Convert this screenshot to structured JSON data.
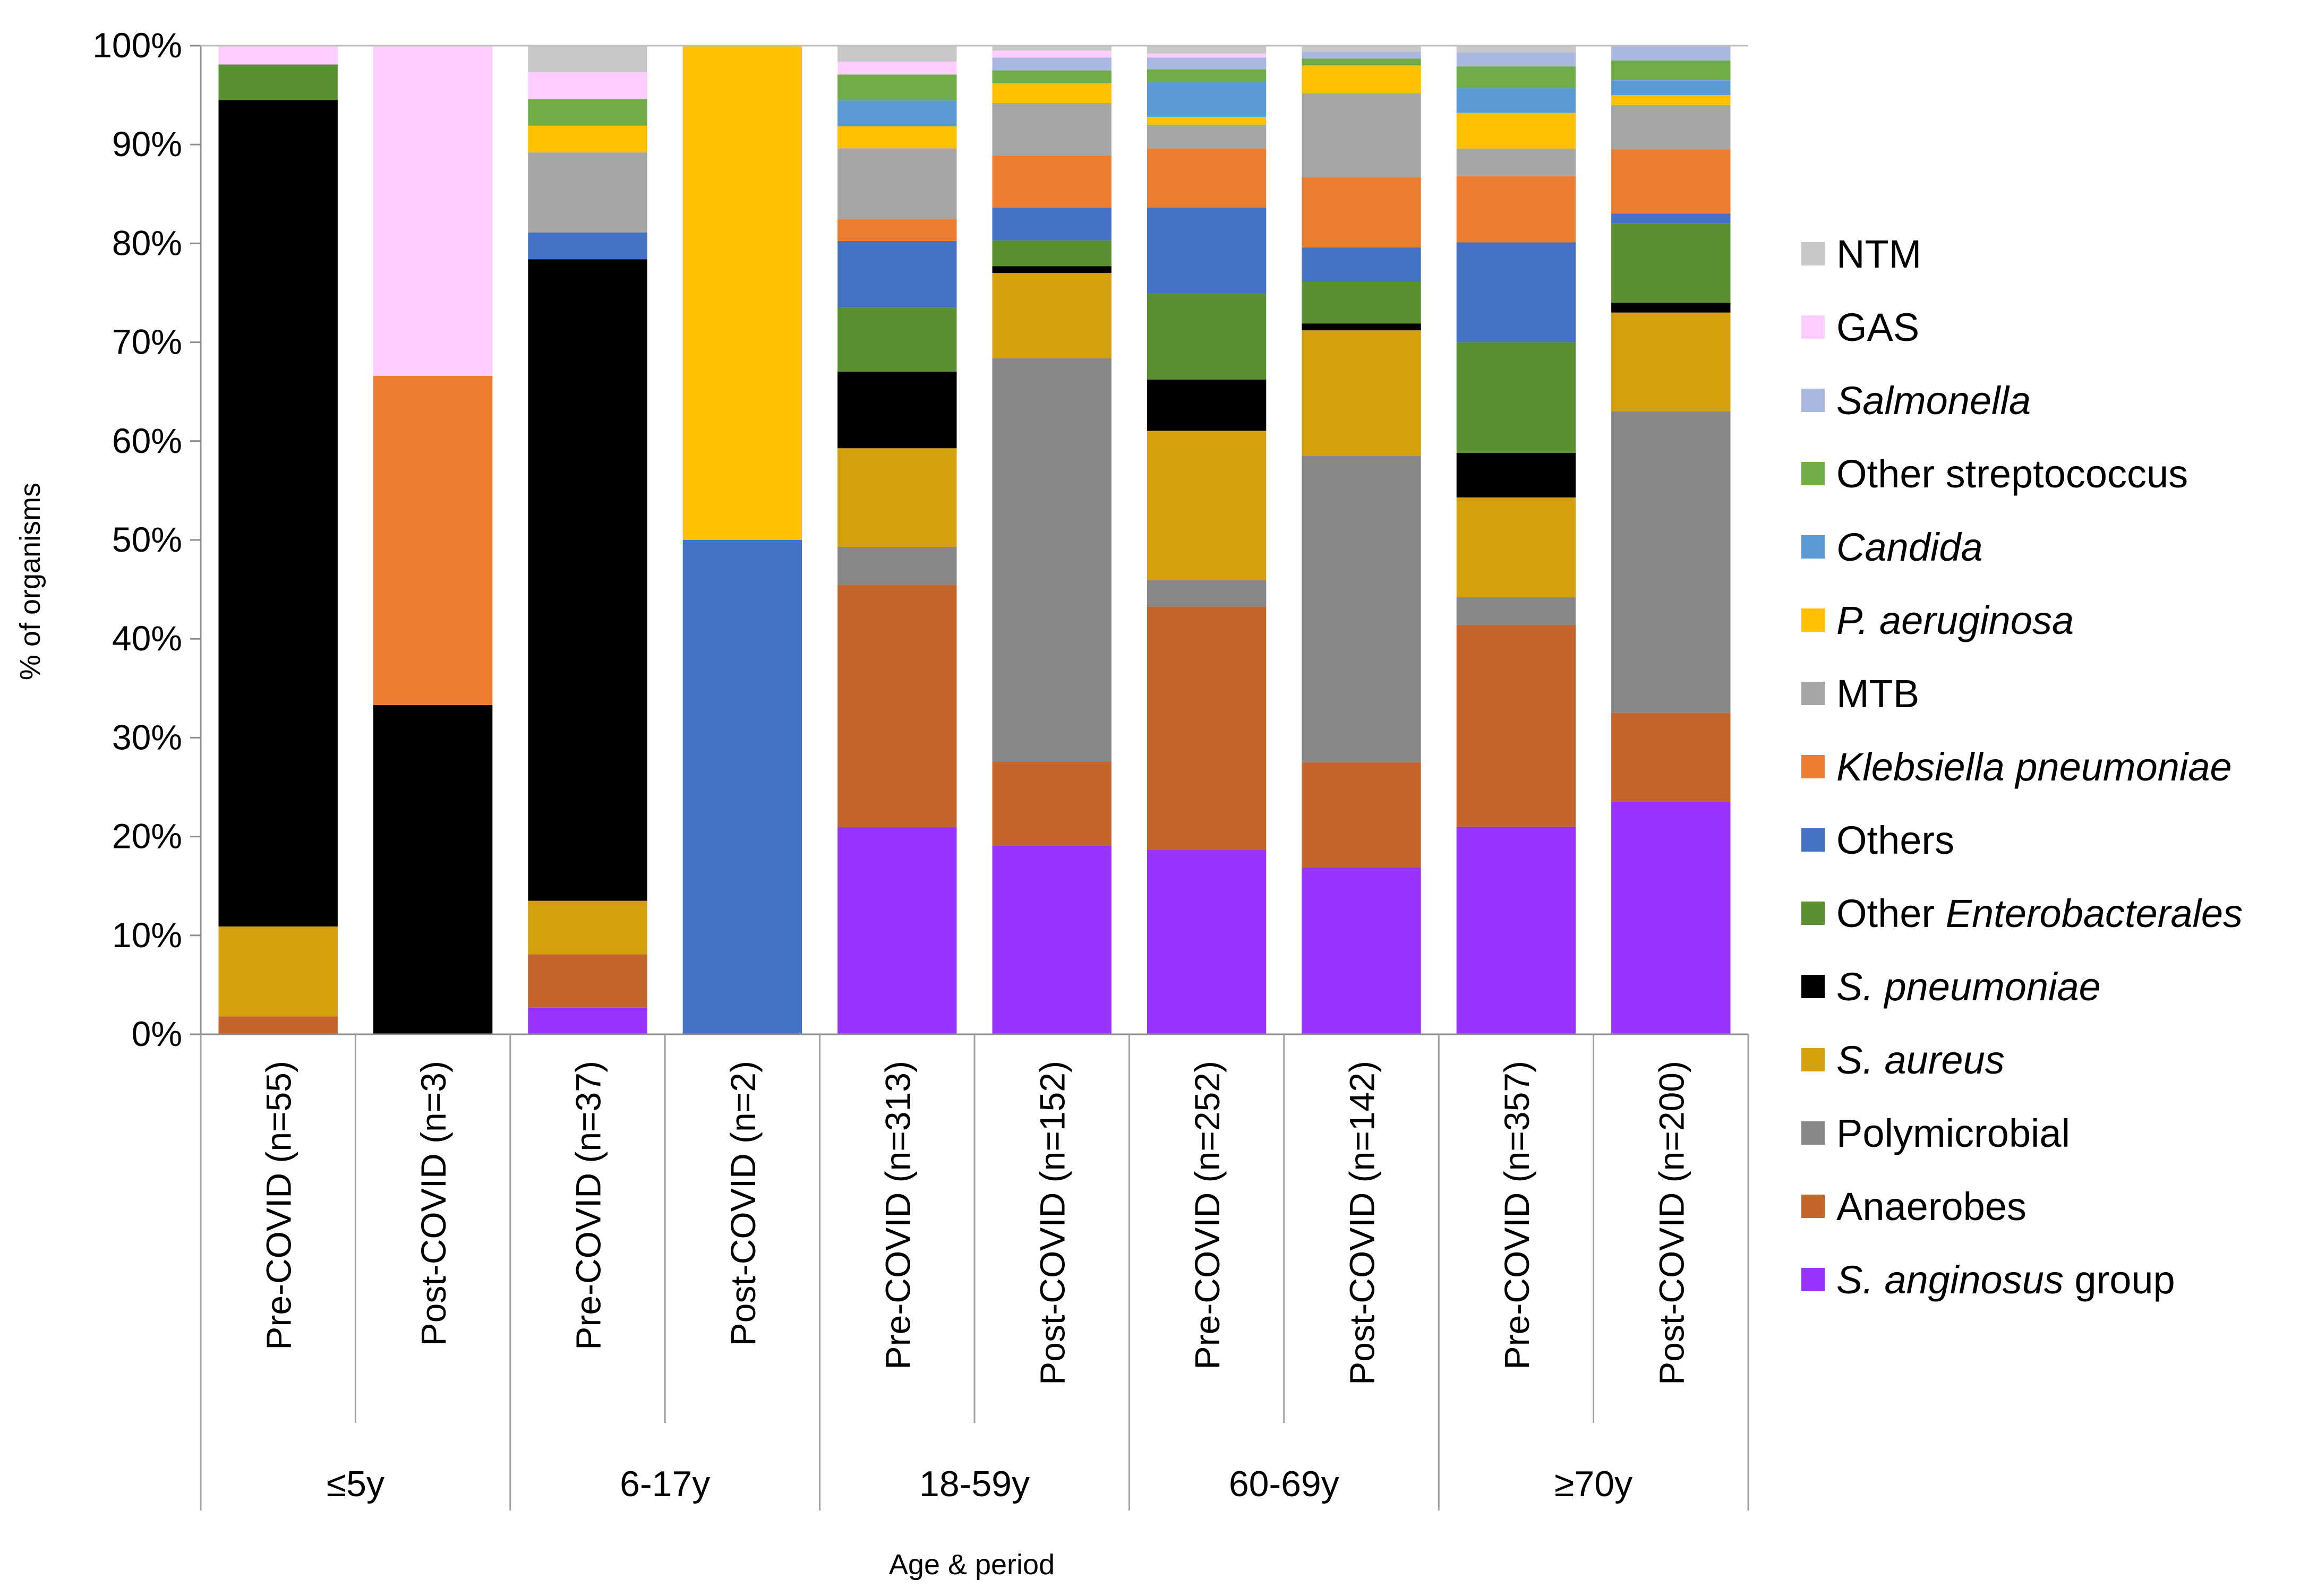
{
  "chart_data": {
    "type": "bar",
    "stacked": true,
    "normalized": true,
    "title": "",
    "xlabel": "Age & period",
    "ylabel": "% of organisms",
    "ylim": [
      0,
      100
    ],
    "yticks": [
      "0%",
      "10%",
      "20%",
      "30%",
      "40%",
      "50%",
      "60%",
      "70%",
      "80%",
      "90%",
      "100%"
    ],
    "grid": false,
    "legend_position": "right",
    "categories": [
      "Pre-COVID (n=55)",
      "Post-COVID (n=3)",
      "Pre-COVID (n=37)",
      "Post-COVID (n=2)",
      "Pre-COVID (n=313)",
      "Post-COVID (n=152)",
      "Pre-COVID (n=252)",
      "Post-COVID (n=142)",
      "Pre-COVID (n=357)",
      "Post-COVID (n=200)"
    ],
    "groups": [
      {
        "label": "≤5y",
        "span": 2
      },
      {
        "label": "6-17y",
        "span": 2
      },
      {
        "label": "18-59y",
        "span": 2
      },
      {
        "label": "60-69y",
        "span": 2
      },
      {
        "label": "≥70y",
        "span": 2
      }
    ],
    "series": [
      {
        "name": "S. anginosus",
        "suffix": " group",
        "italic": true,
        "color": "#9933FF",
        "values": [
          0,
          0,
          2.7,
          0,
          20.8,
          19.1,
          18.7,
          16.9,
          21.0,
          23.5
        ]
      },
      {
        "name": "Anaerobes",
        "italic": false,
        "color": "#C5652B",
        "values": [
          1.8,
          0,
          5.4,
          0,
          24.3,
          8.5,
          24.6,
          10.6,
          20.4,
          9.0
        ]
      },
      {
        "name": "Polymicrobial",
        "italic": false,
        "color": "#878787",
        "values": [
          0,
          0,
          0,
          0,
          3.8,
          40.8,
          2.7,
          31.0,
          2.8,
          30.5
        ]
      },
      {
        "name": "S. aureus",
        "italic": true,
        "color": "#D4A00E",
        "values": [
          9.1,
          0,
          5.4,
          0,
          9.9,
          8.6,
          15.1,
          12.7,
          10.1,
          10.0
        ]
      },
      {
        "name": "S. pneumoniae",
        "italic": true,
        "color": "#000000",
        "values": [
          83.6,
          33.3,
          64.9,
          0,
          7.7,
          0.7,
          5.2,
          0.7,
          4.5,
          1.0
        ]
      },
      {
        "name": "Other ",
        "suffix_italic": "Enterobacterales",
        "italic": false,
        "color": "#5A8F32",
        "values": [
          3.6,
          0,
          0,
          0,
          6.4,
          2.6,
          8.7,
          4.2,
          11.2,
          8.0
        ]
      },
      {
        "name": "Others",
        "italic": false,
        "color": "#4472C4",
        "values": [
          0,
          0,
          2.7,
          50.0,
          6.7,
          3.3,
          8.7,
          3.5,
          10.1,
          1.0
        ]
      },
      {
        "name": "Klebsiella pneumoniae",
        "italic": true,
        "color": "#ED7D31",
        "values": [
          0,
          33.3,
          0,
          0,
          2.2,
          5.3,
          6.0,
          7.1,
          6.7,
          6.5
        ]
      },
      {
        "name": "MTB",
        "italic": false,
        "color": "#A6A6A6",
        "values": [
          0,
          0,
          8.1,
          0,
          7.1,
          5.3,
          2.4,
          8.5,
          2.8,
          4.5
        ]
      },
      {
        "name": "P. aeruginosa",
        "italic": true,
        "color": "#FFC000",
        "values": [
          0,
          0,
          2.7,
          50.0,
          2.2,
          2.0,
          0.8,
          2.8,
          3.6,
          1.0
        ]
      },
      {
        "name": "Candida",
        "italic": true,
        "color": "#5B9BD5",
        "values": [
          0,
          0,
          0,
          0,
          2.6,
          0,
          3.6,
          0,
          2.5,
          1.5
        ]
      },
      {
        "name": "Other streptococcus",
        "italic": false,
        "color": "#70AD47",
        "values": [
          0,
          0,
          2.7,
          0,
          2.6,
          1.3,
          1.2,
          0.7,
          2.2,
          2.0
        ]
      },
      {
        "name": "Salmonella",
        "italic": true,
        "color": "#A9B8E0",
        "values": [
          0,
          0,
          0,
          0,
          0,
          1.3,
          1.2,
          0.7,
          1.4,
          1.5
        ]
      },
      {
        "name": "GAS",
        "italic": false,
        "color": "#FFCCFF",
        "values": [
          1.9,
          33.4,
          2.7,
          0,
          1.3,
          0.7,
          0.4,
          0,
          0,
          0
        ]
      },
      {
        "name": "NTM",
        "italic": false,
        "color": "#C8C8C8",
        "values": [
          0,
          0,
          2.7,
          0,
          1.6,
          0.5,
          0.8,
          0.6,
          0.7,
          0
        ]
      }
    ]
  }
}
